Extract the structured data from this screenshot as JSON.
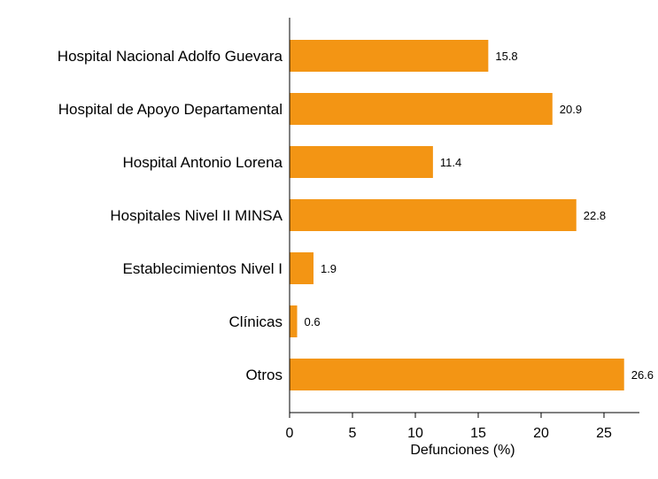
{
  "chart_data": {
    "type": "bar",
    "orientation": "horizontal",
    "categories": [
      "Hospital Nacional Adolfo Guevara",
      "Hospital de Apoyo Departamental",
      "Hospital Antonio Lorena",
      "Hospitales Nivel II MINSA",
      "Establecimientos Nivel I",
      "Clínicas",
      "Otros"
    ],
    "values": [
      15.8,
      20.9,
      11.4,
      22.8,
      1.9,
      0.6,
      26.6
    ],
    "value_labels": [
      "15.8",
      "20.9",
      "11.4",
      "22.8",
      "1.9",
      "0.6",
      "26.6"
    ],
    "xlabel": "Defunciones (%)",
    "ylabel": "",
    "xlim": [
      0,
      28
    ],
    "xticks": [
      0,
      5,
      10,
      15,
      20,
      25
    ],
    "xtick_labels": [
      "0",
      "5",
      "10",
      "15",
      "20",
      "25"
    ],
    "bar_color": "#F39514",
    "grid": false,
    "legend": "none"
  }
}
